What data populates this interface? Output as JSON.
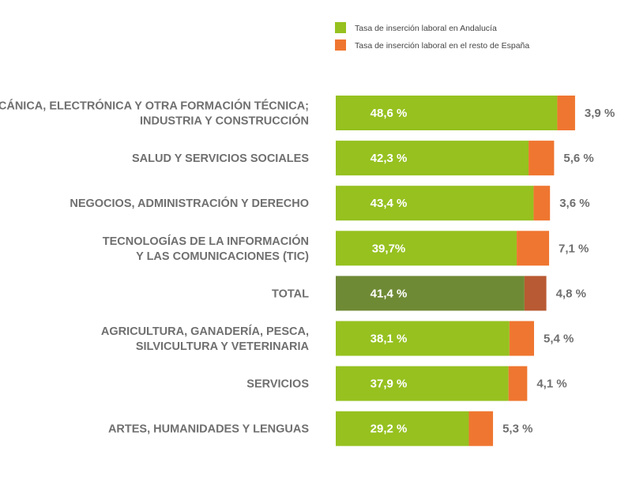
{
  "chart_data": {
    "type": "bar",
    "orientation": "horizontal",
    "stacked": true,
    "legend_position": "top-right",
    "grid": false,
    "categories": [
      [
        "MECÁNICA, ELECTRÓNICA Y OTRA FORMACIÓN TÉCNICA;",
        "INDUSTRIA Y CONSTRUCCIÓN"
      ],
      [
        "SALUD Y SERVICIOS SOCIALES"
      ],
      [
        "NEGOCIOS, ADMINISTRACIÓN Y DERECHO"
      ],
      [
        "TECNOLOGÍAS DE LA INFORMACIÓN",
        "Y LAS COMUNICACIONES (TIC)"
      ],
      [
        "TOTAL"
      ],
      [
        "AGRICULTURA, GANADERÍA, PESCA,",
        "SILVICULTURA Y VETERINARIA"
      ],
      [
        "SERVICIOS"
      ],
      [
        "ARTES, HUMANIDADES Y LENGUAS"
      ]
    ],
    "highlight_index": 4,
    "series": [
      {
        "name": "Tasa de inserción laboral en Andalucía",
        "color": "#96c11f",
        "highlight_color": "#6f8a35",
        "values": [
          48.6,
          42.3,
          43.4,
          39.7,
          41.4,
          38.1,
          37.9,
          29.2
        ],
        "labels": [
          "48,6 %",
          "42,3  %",
          "43,4 %",
          "39,7%",
          "41,4 %",
          "38,1 %",
          "37,9 %",
          "29,2 %"
        ]
      },
      {
        "name": "Tasa de inserción laboral en el resto de España",
        "color": "#ef7630",
        "highlight_color": "#b85a33",
        "values": [
          3.9,
          5.6,
          3.6,
          7.1,
          4.8,
          5.4,
          4.1,
          5.3
        ],
        "labels": [
          "3,9 %",
          "5,6 %",
          "3,6 %",
          "7,1 %",
          "4,8 %",
          "5,4 %",
          "4,1 %",
          "5,3 %"
        ]
      }
    ]
  }
}
